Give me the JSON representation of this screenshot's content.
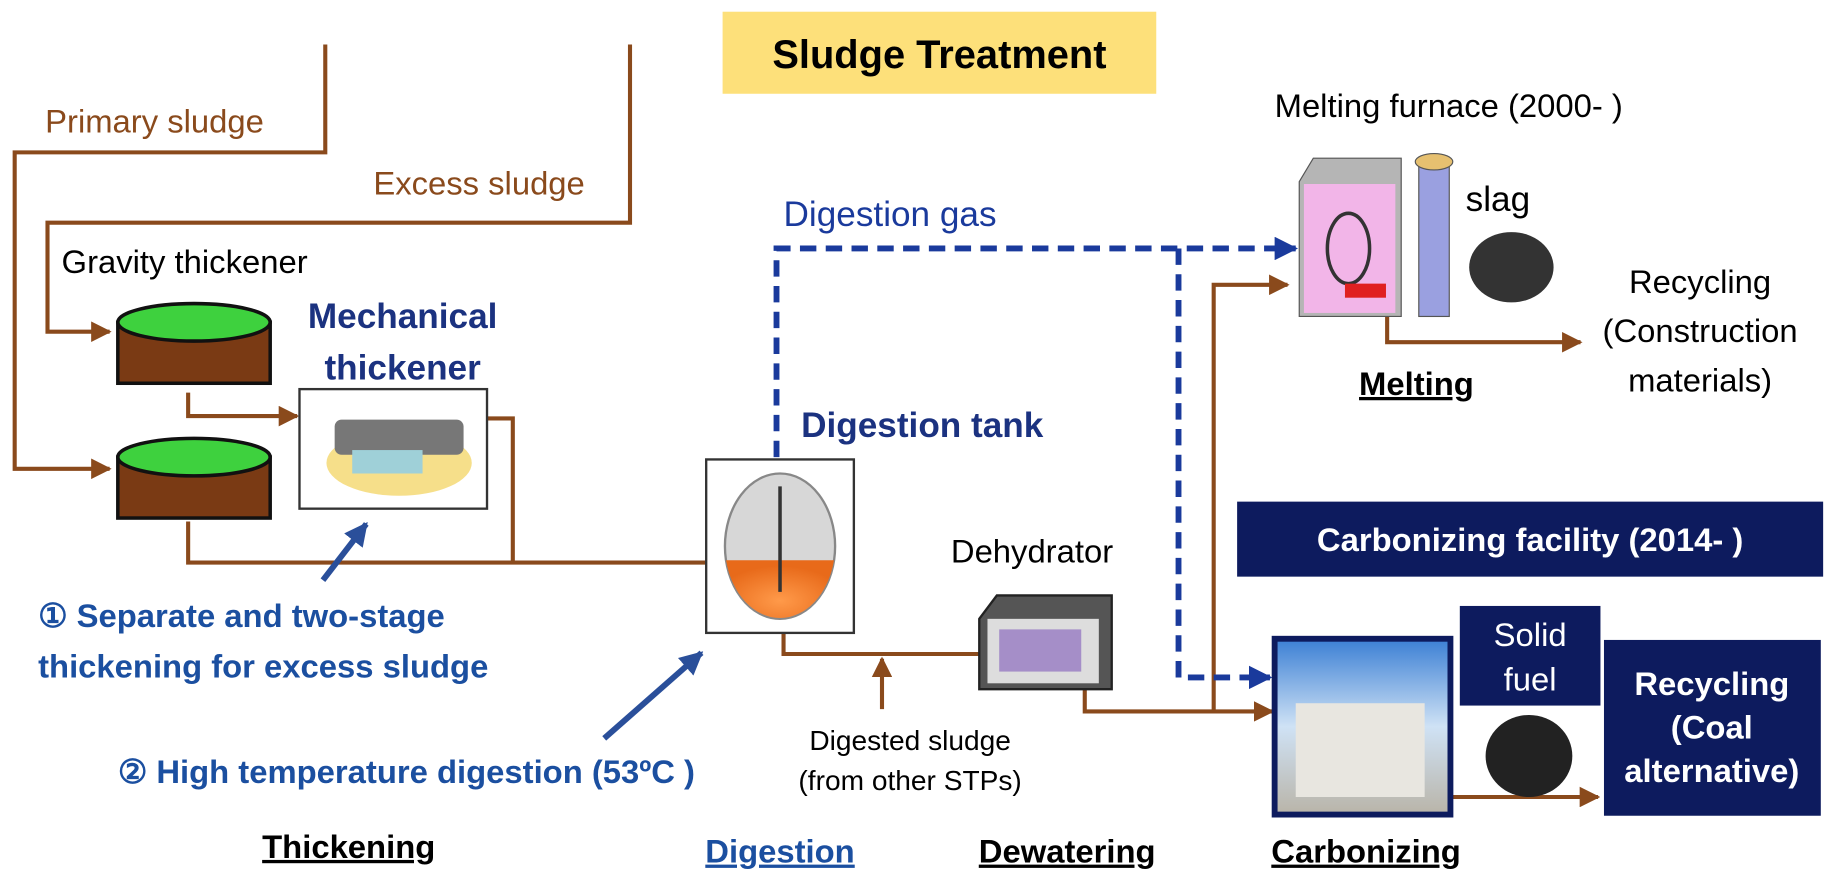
{
  "title": "Sludge Treatment",
  "primary_sludge": "Primary sludge",
  "excess_sludge": "Excess sludge",
  "gravity_thickener": "Gravity thickener",
  "mechanical_thickener": [
    "Mechanical",
    "thickener"
  ],
  "digestion_gas": "Digestion gas",
  "digestion_tank": "Digestion tank",
  "melting_furnace": "Melting furnace (2000- )",
  "slag": "slag",
  "recycling_construction": [
    "Recycling",
    "(Construction",
    "materials)"
  ],
  "melting": "Melting",
  "carbonizing_facility": "Carbonizing facility (2014- )",
  "dehydrator": "Dehydrator",
  "solid_fuel": [
    "Solid",
    "fuel"
  ],
  "recycling_coal": [
    "Recycling",
    "(Coal",
    "alternative)"
  ],
  "note_1": [
    "① Separate and two-stage",
    "thickening for excess sludge"
  ],
  "note_2": "② High temperature digestion (53ºC )",
  "digested_sludge": [
    "Digested sludge",
    "(from other STPs)"
  ],
  "stages": [
    "Thickening",
    "Digestion",
    "Dewatering",
    "Carbonizing"
  ]
}
